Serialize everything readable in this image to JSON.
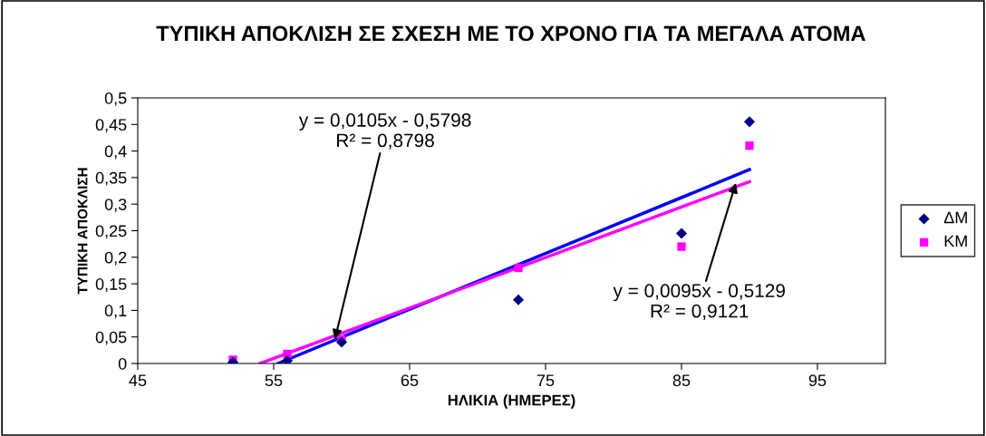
{
  "chart_data": {
    "type": "scatter",
    "title": "ΤΥΠΙΚΗ ΑΠΟΚΛΙΣΗ ΣΕ ΣΧΕΣΗ ΜΕ ΤΟ ΧΡΟΝΟ ΓΙΑ ΤΑ ΜΕΓΑΛΑ ΑΤΟΜΑ",
    "xlabel": "ΗΛΙΚΙΑ (ΗΜΕΡΕΣ)",
    "ylabel": "ΤΥΠΙΚΗ ΑΠΟΚΛΙΣΗ",
    "xlim": [
      45,
      100
    ],
    "xticks": [
      45,
      55,
      65,
      75,
      85,
      95
    ],
    "ylim": [
      0,
      0.5
    ],
    "yticks": [
      {
        "value": 0,
        "label": "0"
      },
      {
        "value": 0.05,
        "label": "0,05"
      },
      {
        "value": 0.1,
        "label": "0,1"
      },
      {
        "value": 0.15,
        "label": "0,15"
      },
      {
        "value": 0.2,
        "label": "0,2"
      },
      {
        "value": 0.25,
        "label": "0,25"
      },
      {
        "value": 0.3,
        "label": "0,3"
      },
      {
        "value": 0.35,
        "label": "0,35"
      },
      {
        "value": 0.4,
        "label": "0,4"
      },
      {
        "value": 0.45,
        "label": "0,45"
      },
      {
        "value": 0.5,
        "label": "0,5"
      }
    ],
    "grid": false,
    "legend": "right",
    "series": [
      {
        "name": "ΔΜ",
        "marker": "diamond",
        "color": "#000080",
        "x": [
          52,
          56,
          60,
          73,
          85,
          90
        ],
        "values": [
          0.002,
          0.005,
          0.04,
          0.12,
          0.245,
          0.455
        ]
      },
      {
        "name": "ΚΜ",
        "marker": "square",
        "color": "#ff00ff",
        "x": [
          52,
          56,
          60,
          73,
          85,
          90
        ],
        "values": [
          0.007,
          0.018,
          0.045,
          0.18,
          0.22,
          0.41
        ]
      },
      {
        "type": "line",
        "color": "#0000ff",
        "x": [
          55.3,
          90
        ],
        "values": [
          0,
          0.365
        ]
      },
      {
        "type": "line",
        "color": "#ff00ff",
        "x": [
          54,
          90
        ],
        "values": [
          0,
          0.342
        ]
      }
    ],
    "annotations": [
      {
        "text": "y = 0,0105x - 0,5798\nR² = 0,8798",
        "x": 59.5,
        "y": 0.045
      },
      {
        "text": "y = 0,0095x - 0,5129\nR² = 0,9121",
        "x": 89,
        "y": 0.34
      }
    ]
  }
}
